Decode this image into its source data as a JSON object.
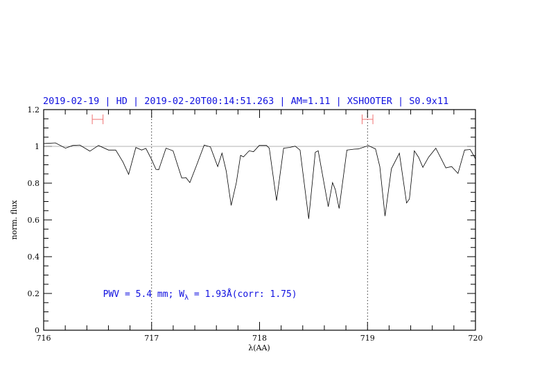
{
  "chart_data": {
    "type": "line",
    "title": "2019-02-19 | HD | 2019-02-20T00:14:51.263 | AM=1.11 | XSHOOTER | S0.9x11",
    "xlabel": "λ(AA)",
    "ylabel": "norm. flux",
    "xlim": [
      716,
      720
    ],
    "ylim": [
      0,
      1.2
    ],
    "xticks": [
      716,
      717,
      718,
      719,
      720
    ],
    "xtick_labels": [
      "716",
      "717",
      "718",
      "719",
      "720"
    ],
    "yticks": [
      0,
      0.2,
      0.4,
      0.6,
      0.8,
      1,
      1.2
    ],
    "ytick_labels": [
      "0",
      "0.2",
      "0.4",
      "0.6",
      "0.8",
      "1",
      "1.2"
    ],
    "x_minor_step": 0.2,
    "y_minor_step": 0.05,
    "grid": false,
    "reference_line": {
      "y": 1.0,
      "color": "#e05050"
    },
    "vertical_markers": [
      717,
      719
    ],
    "range_markers": [
      {
        "x": [
          716.45,
          716.55
        ],
        "y": 1.147,
        "color": "#f07070"
      },
      {
        "x": [
          718.95,
          719.05
        ],
        "y": 1.147,
        "color": "#f07070"
      }
    ],
    "annotation": {
      "prefix": "PWV = 5.4 mm; W",
      "subscript": "λ",
      "suffix": " = 1.93Å(corr: 1.75)",
      "color": "#1010e0",
      "x": 716.55,
      "y": 0.2
    },
    "series": [
      {
        "color": "#000000",
        "x": [
          716.0,
          716.016,
          716.109,
          716.202,
          716.269,
          716.335,
          716.428,
          716.508,
          716.601,
          716.668,
          716.734,
          716.787,
          716.854,
          716.907,
          716.947,
          717.0,
          717.04,
          717.066,
          717.133,
          717.199,
          717.279,
          717.319,
          717.354,
          717.412,
          717.487,
          717.545,
          717.612,
          717.652,
          717.691,
          717.737,
          717.785,
          717.824,
          717.851,
          717.904,
          717.944,
          717.997,
          718.064,
          718.09,
          718.157,
          718.223,
          718.277,
          718.33,
          718.375,
          718.455,
          718.516,
          718.543,
          718.636,
          718.676,
          718.702,
          718.737,
          718.809,
          718.875,
          718.915,
          719.008,
          719.074,
          719.114,
          719.162,
          719.221,
          719.295,
          719.362,
          719.388,
          719.434,
          719.473,
          719.513,
          719.566,
          719.633,
          719.726,
          719.779,
          719.838,
          719.899,
          719.952,
          719.992,
          720.0
        ],
        "y": [
          1.015,
          1.016,
          1.019,
          0.99,
          1.005,
          1.007,
          0.974,
          1.005,
          0.98,
          0.98,
          0.916,
          0.848,
          0.994,
          0.98,
          0.989,
          0.928,
          0.875,
          0.873,
          0.99,
          0.976,
          0.828,
          0.83,
          0.803,
          0.89,
          1.007,
          0.997,
          0.89,
          0.963,
          0.866,
          0.679,
          0.803,
          0.951,
          0.943,
          0.976,
          0.971,
          1.005,
          1.005,
          0.99,
          0.705,
          0.99,
          0.994,
          1.001,
          0.98,
          0.606,
          0.968,
          0.976,
          0.672,
          0.803,
          0.765,
          0.662,
          0.98,
          0.985,
          0.986,
          1.004,
          0.986,
          0.89,
          0.621,
          0.878,
          0.963,
          0.692,
          0.714,
          0.976,
          0.941,
          0.886,
          0.941,
          0.99,
          0.883,
          0.89,
          0.853,
          0.98,
          0.983,
          0.941,
          0.93
        ]
      }
    ]
  }
}
